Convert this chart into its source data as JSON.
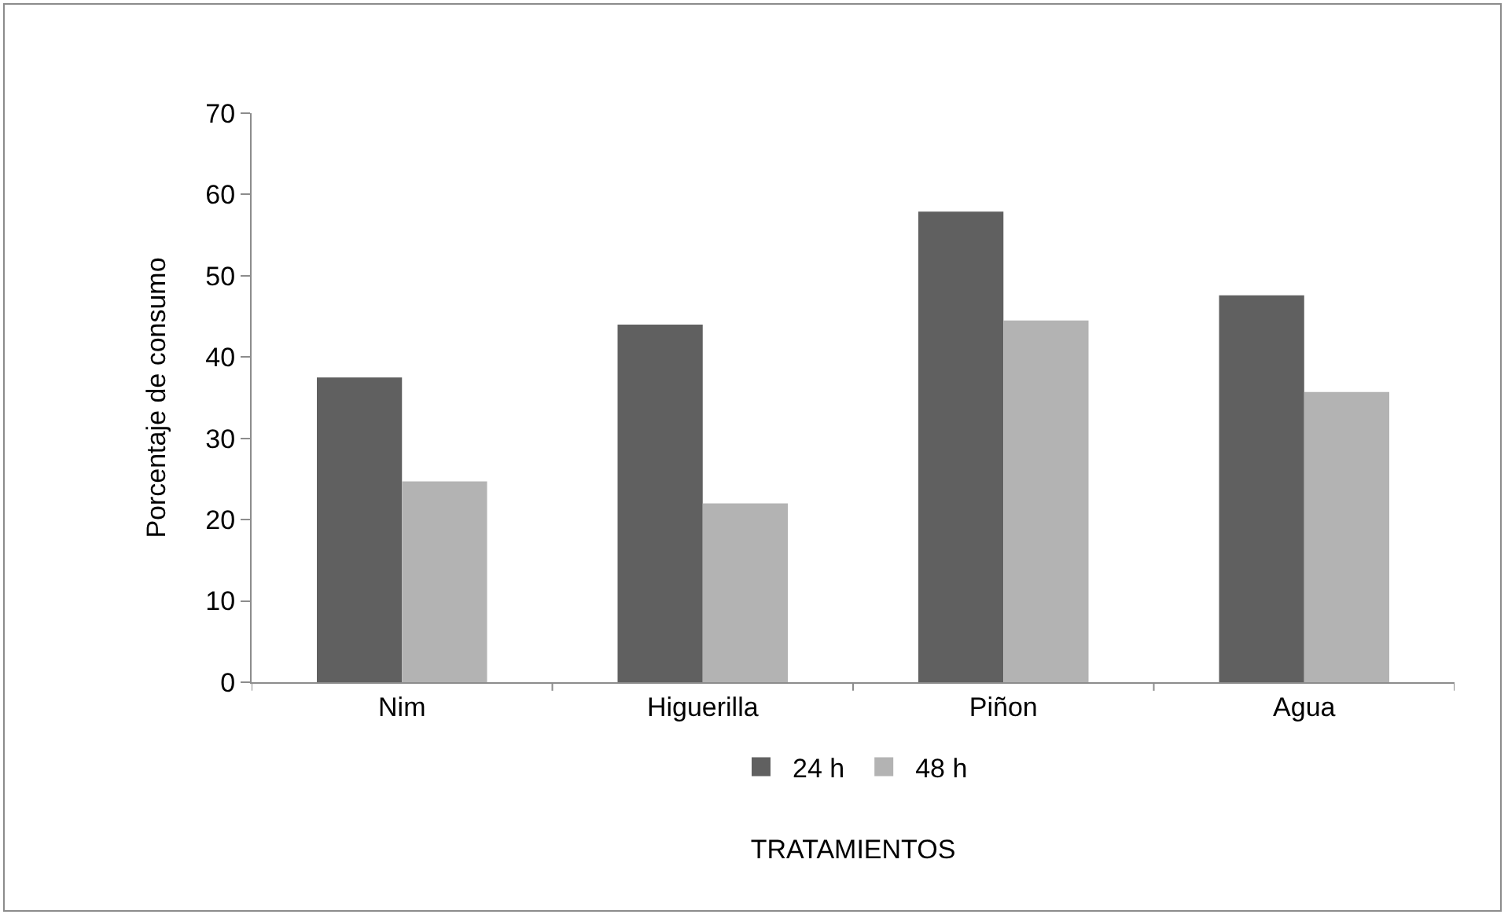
{
  "chart_data": {
    "type": "bar",
    "xlabel": "TRATAMIENTOS",
    "ylabel": "Porcentaje de consumo",
    "categories": [
      "Nim",
      "Higuerilla",
      "Piñon",
      "Agua"
    ],
    "series": [
      {
        "name": "24 h",
        "color": "#606060",
        "values": [
          37.5,
          44.0,
          57.9,
          47.6
        ]
      },
      {
        "name": "48 h",
        "color": "#b3b3b3",
        "values": [
          24.7,
          22.0,
          44.5,
          35.7
        ]
      }
    ],
    "ylim": [
      0,
      70
    ],
    "yticks": [
      0,
      10,
      20,
      30,
      40,
      50,
      60,
      70
    ],
    "grid": false,
    "legend": "bottom"
  }
}
